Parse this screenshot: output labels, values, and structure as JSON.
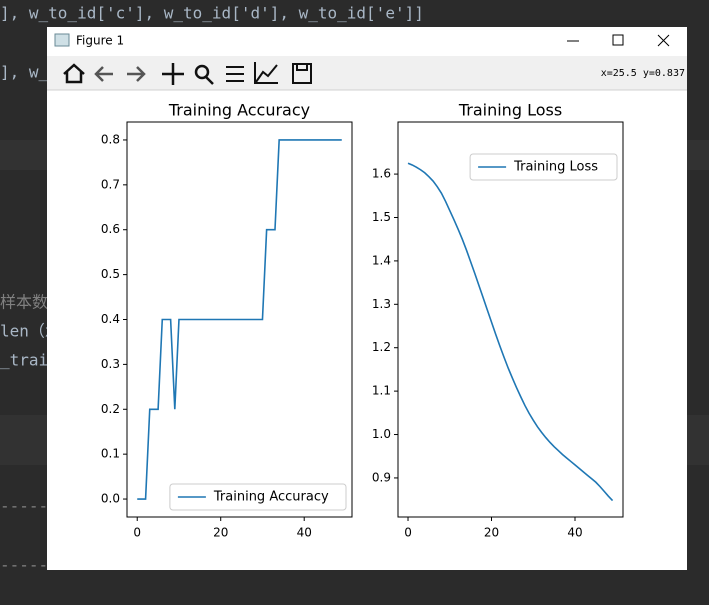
{
  "background_code": [
    "], w_to_id['c'], w_to_id['d'], w_to_id['e']]",
    "], w_",
    "样本数",
    "len（x",
    "_trai",
    "-----",
    "-----"
  ],
  "window": {
    "title": "Figure 1",
    "coordinates": "x=25.5 y=0.837"
  },
  "chart_data": [
    {
      "type": "line",
      "title": "Training Accuracy",
      "x": [
        0,
        1,
        2,
        3,
        4,
        5,
        6,
        7,
        8,
        9,
        10,
        11,
        12,
        13,
        14,
        15,
        16,
        17,
        18,
        19,
        20,
        21,
        22,
        23,
        24,
        25,
        26,
        27,
        28,
        29,
        30,
        31,
        32,
        33,
        34,
        35,
        36,
        37,
        38,
        39,
        40,
        41,
        42,
        43,
        44,
        45,
        46,
        47,
        48,
        49
      ],
      "series": [
        {
          "name": "Training Accuracy",
          "color": "#1f77b4",
          "values": [
            0,
            0,
            0,
            0.2,
            0.2,
            0.2,
            0.4,
            0.4,
            0.4,
            0.2,
            0.4,
            0.4,
            0.4,
            0.4,
            0.4,
            0.4,
            0.4,
            0.4,
            0.4,
            0.4,
            0.4,
            0.4,
            0.4,
            0.4,
            0.4,
            0.4,
            0.4,
            0.4,
            0.4,
            0.4,
            0.4,
            0.6,
            0.6,
            0.6,
            0.8,
            0.8,
            0.8,
            0.8,
            0.8,
            0.8,
            0.8,
            0.8,
            0.8,
            0.8,
            0.8,
            0.8,
            0.8,
            0.8,
            0.8,
            0.8
          ]
        }
      ],
      "xlim": [
        -2.45,
        51.45
      ],
      "ylim": [
        -0.04,
        0.84
      ],
      "xticks": [
        0,
        20,
        40
      ],
      "yticks": [
        {
          "value": 0,
          "label": "0.0"
        },
        0.1,
        0.2,
        0.3,
        0.4,
        0.5,
        0.6,
        0.7,
        0.8
      ],
      "legend": "lower right"
    },
    {
      "type": "line",
      "title": "Training Loss",
      "x": [
        0,
        1,
        2,
        3,
        4,
        5,
        6,
        7,
        8,
        9,
        10,
        11,
        12,
        13,
        14,
        15,
        16,
        17,
        18,
        19,
        20,
        21,
        22,
        23,
        24,
        25,
        26,
        27,
        28,
        29,
        30,
        31,
        32,
        33,
        34,
        35,
        36,
        37,
        38,
        39,
        40,
        41,
        42,
        43,
        44,
        45,
        46,
        47,
        48,
        49
      ],
      "series": [
        {
          "name": "Training Loss",
          "color": "#1f77b4",
          "values": [
            1.625,
            1.621,
            1.616,
            1.61,
            1.603,
            1.594,
            1.584,
            1.571,
            1.556,
            1.537,
            1.516,
            1.495,
            1.473,
            1.45,
            1.425,
            1.398,
            1.371,
            1.343,
            1.315,
            1.287,
            1.259,
            1.231,
            1.204,
            1.178,
            1.153,
            1.13,
            1.108,
            1.087,
            1.067,
            1.049,
            1.033,
            1.018,
            1.005,
            0.993,
            0.982,
            0.972,
            0.963,
            0.954,
            0.946,
            0.938,
            0.93,
            0.922,
            0.914,
            0.906,
            0.898,
            0.89,
            0.88,
            0.869,
            0.858,
            0.848
          ]
        }
      ],
      "xlim": [
        -2.4,
        51.5
      ],
      "ylim": [
        0.81,
        1.72
      ],
      "xticks": [
        0,
        20,
        40
      ],
      "yticks": [
        0.9,
        {
          "value": 1,
          "label": "1.0"
        },
        1.1,
        1.2,
        1.3,
        1.4,
        1.5,
        1.6
      ],
      "legend": "upper right"
    }
  ]
}
